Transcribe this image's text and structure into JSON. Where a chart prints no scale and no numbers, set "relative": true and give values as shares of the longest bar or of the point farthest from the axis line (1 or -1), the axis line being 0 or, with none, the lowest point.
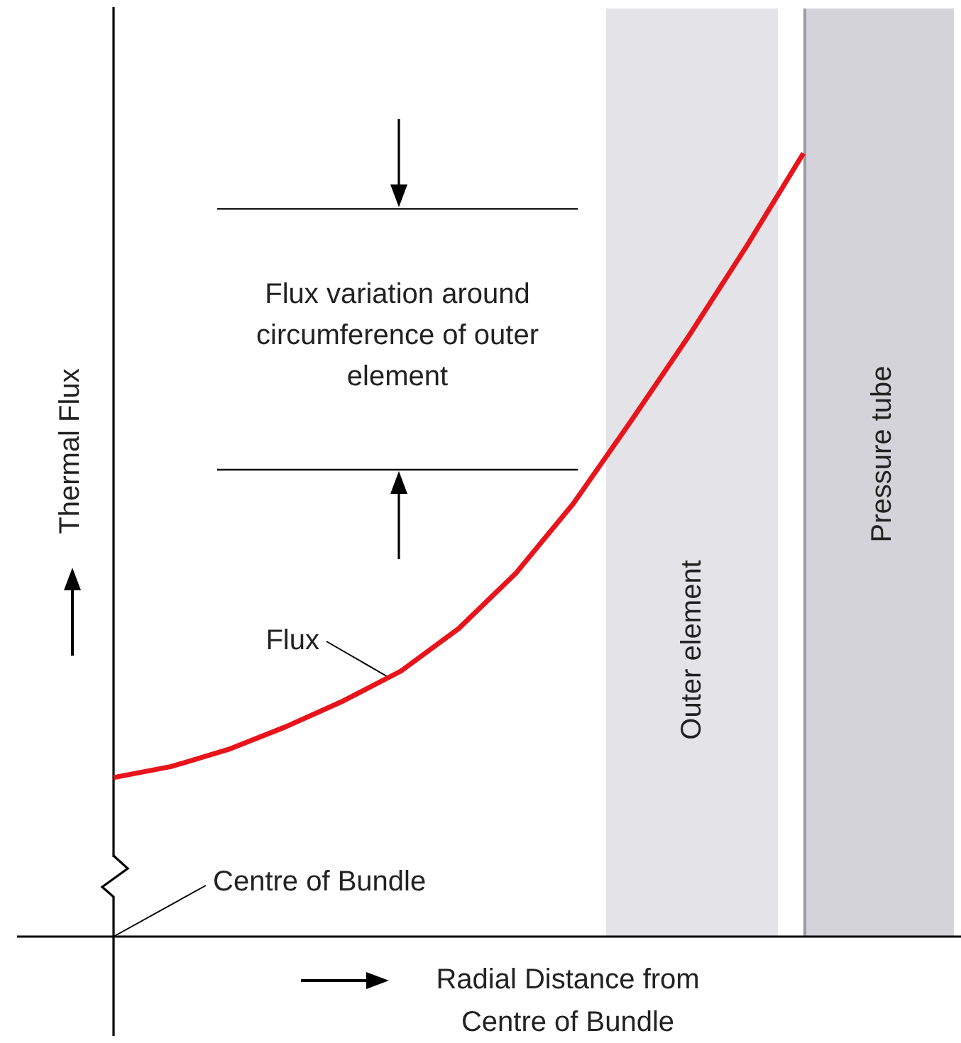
{
  "chart_data": {
    "type": "line",
    "relative": true,
    "xlabel": "Radial Distance from Centre of Bundle",
    "ylabel": "Thermal Flux",
    "marker": "none",
    "color": "#e8141c",
    "categories": [
      null,
      null,
      null,
      null,
      null,
      null,
      null,
      null,
      null,
      null,
      null,
      null,
      null
    ],
    "values": [
      0.203,
      0.217,
      0.239,
      0.268,
      0.301,
      0.339,
      0.393,
      0.464,
      0.553,
      0.658,
      0.766,
      0.88,
      1
    ],
    "ref_lines": [
      {
        "axis": "y",
        "value": 0.929,
        "color": "#000000"
      },
      {
        "axis": "y",
        "value": 0.596,
        "color": "#000000"
      }
    ],
    "annotations": [
      "Flux variation around circumference of outer element",
      "Flux",
      "Centre of Bundle",
      "Outer element",
      "Pressure tube"
    ]
  }
}
